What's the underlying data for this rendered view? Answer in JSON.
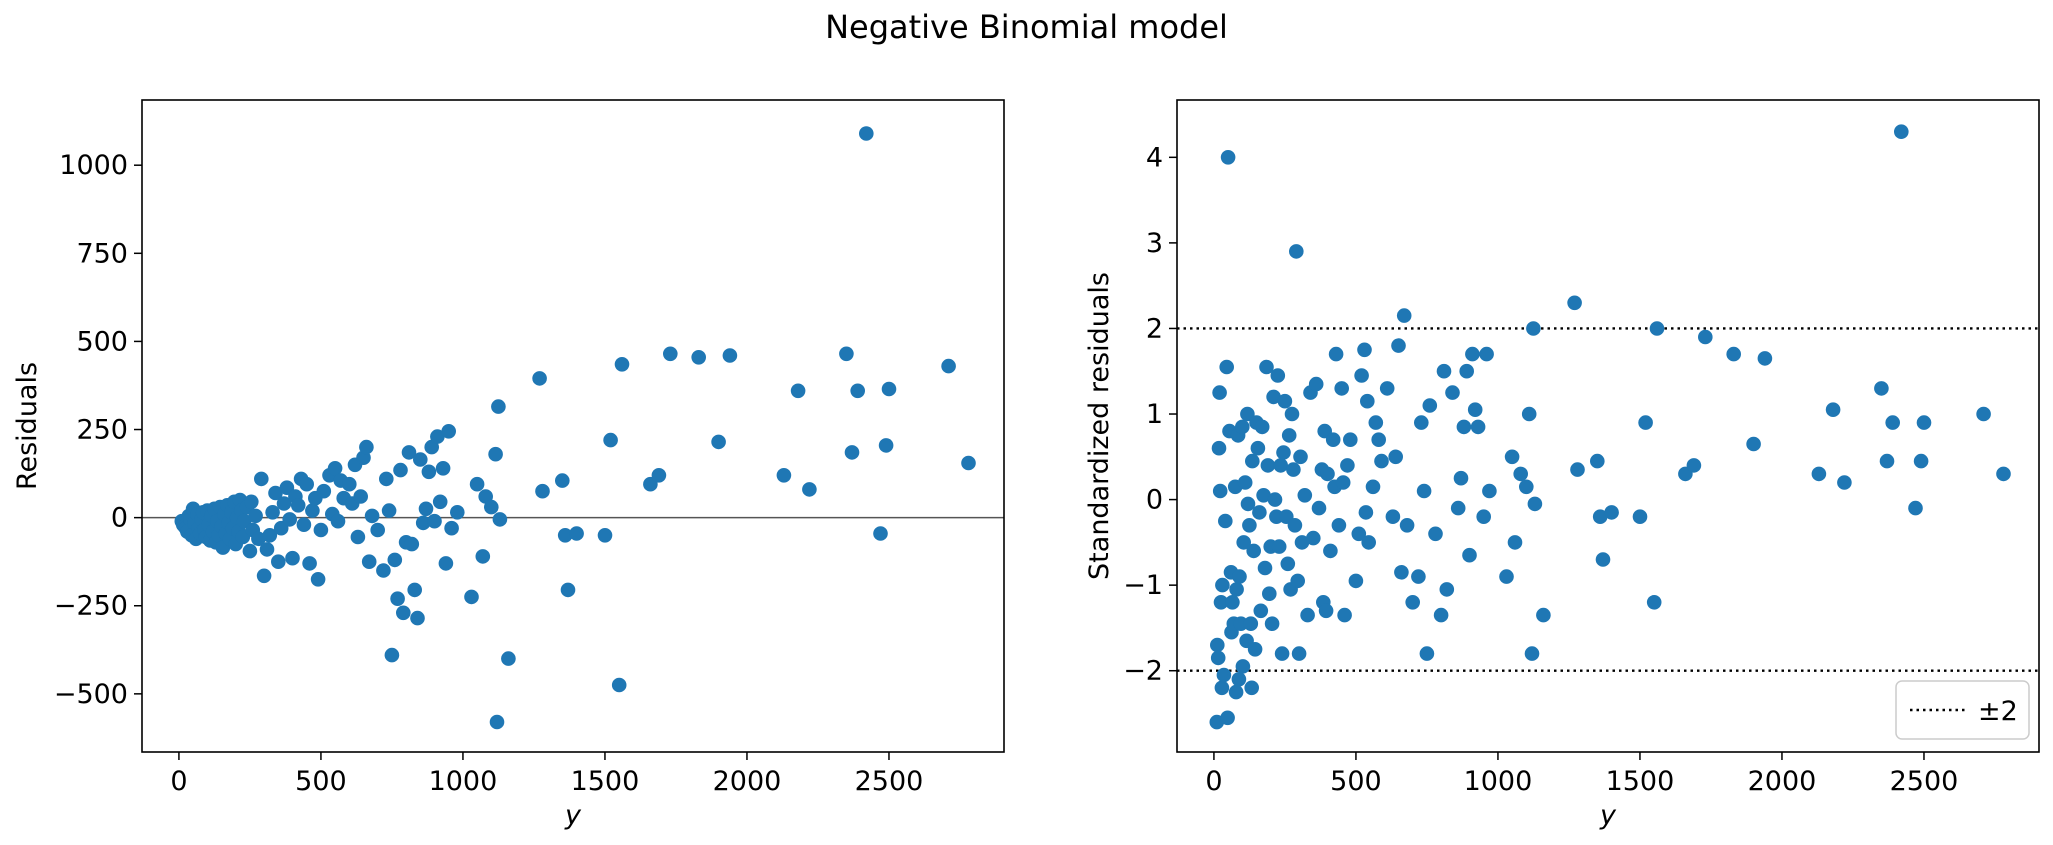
{
  "figure_title": "Negative Binomial model",
  "chart_data": [
    {
      "type": "scatter",
      "title": "",
      "xlabel": "y",
      "ylabel": "Residuals",
      "xlim": [
        -130,
        2905
      ],
      "ylim": [
        -665,
        1185
      ],
      "xticks": [
        0,
        500,
        1000,
        1500,
        2000,
        2500
      ],
      "xtick_labels": [
        "0",
        "500",
        "1000",
        "1500",
        "2000",
        "2500"
      ],
      "yticks": [
        -500,
        -250,
        0,
        250,
        500,
        750,
        1000
      ],
      "ytick_labels": [
        "−500",
        "−250",
        "0",
        "250",
        "500",
        "750",
        "1000"
      ],
      "hlines": [
        {
          "y": 0,
          "style": "solid",
          "color": "#555555"
        }
      ],
      "point_color": "#1f77b4",
      "grid": false,
      "points": [
        [
          10,
          -10
        ],
        [
          15,
          -20
        ],
        [
          20,
          -25
        ],
        [
          25,
          -30
        ],
        [
          30,
          -40
        ],
        [
          35,
          5
        ],
        [
          40,
          -5
        ],
        [
          45,
          -50
        ],
        [
          50,
          25
        ],
        [
          55,
          -15
        ],
        [
          60,
          -60
        ],
        [
          65,
          10
        ],
        [
          70,
          -30
        ],
        [
          75,
          -45
        ],
        [
          80,
          -5
        ],
        [
          85,
          15
        ],
        [
          90,
          -35
        ],
        [
          95,
          -55
        ],
        [
          100,
          20
        ],
        [
          105,
          -20
        ],
        [
          110,
          -65
        ],
        [
          115,
          5
        ],
        [
          120,
          -40
        ],
        [
          125,
          25
        ],
        [
          130,
          -70
        ],
        [
          135,
          -10
        ],
        [
          140,
          -50
        ],
        [
          145,
          30
        ],
        [
          150,
          -25
        ],
        [
          155,
          -85
        ],
        [
          160,
          10
        ],
        [
          165,
          -45
        ],
        [
          170,
          35
        ],
        [
          175,
          -15
        ],
        [
          180,
          -60
        ],
        [
          185,
          15
        ],
        [
          190,
          -30
        ],
        [
          195,
          45
        ],
        [
          200,
          -75
        ],
        [
          205,
          0
        ],
        [
          210,
          -40
        ],
        [
          215,
          50
        ],
        [
          220,
          20
        ],
        [
          225,
          -55
        ],
        [
          230,
          -10
        ],
        [
          240,
          30
        ],
        [
          250,
          -95
        ],
        [
          255,
          45
        ],
        [
          260,
          -35
        ],
        [
          270,
          5
        ],
        [
          280,
          -60
        ],
        [
          290,
          110
        ],
        [
          300,
          -165
        ],
        [
          310,
          -90
        ],
        [
          320,
          -50
        ],
        [
          330,
          15
        ],
        [
          340,
          70
        ],
        [
          350,
          -125
        ],
        [
          360,
          -30
        ],
        [
          370,
          40
        ],
        [
          380,
          85
        ],
        [
          390,
          -5
        ],
        [
          400,
          -115
        ],
        [
          410,
          60
        ],
        [
          420,
          35
        ],
        [
          430,
          110
        ],
        [
          440,
          -20
        ],
        [
          450,
          95
        ],
        [
          460,
          -130
        ],
        [
          470,
          20
        ],
        [
          480,
          55
        ],
        [
          490,
          -175
        ],
        [
          500,
          -35
        ],
        [
          510,
          75
        ],
        [
          530,
          120
        ],
        [
          540,
          10
        ],
        [
          550,
          140
        ],
        [
          560,
          -10
        ],
        [
          570,
          105
        ],
        [
          580,
          55
        ],
        [
          600,
          95
        ],
        [
          610,
          40
        ],
        [
          620,
          150
        ],
        [
          630,
          -55
        ],
        [
          640,
          60
        ],
        [
          650,
          170
        ],
        [
          660,
          200
        ],
        [
          670,
          -125
        ],
        [
          680,
          5
        ],
        [
          700,
          -35
        ],
        [
          720,
          -150
        ],
        [
          730,
          110
        ],
        [
          740,
          20
        ],
        [
          750,
          -390
        ],
        [
          760,
          -120
        ],
        [
          770,
          -230
        ],
        [
          780,
          135
        ],
        [
          790,
          -270
        ],
        [
          800,
          -70
        ],
        [
          810,
          185
        ],
        [
          820,
          -75
        ],
        [
          830,
          -205
        ],
        [
          840,
          -285
        ],
        [
          850,
          165
        ],
        [
          860,
          -15
        ],
        [
          870,
          25
        ],
        [
          880,
          130
        ],
        [
          890,
          200
        ],
        [
          900,
          -10
        ],
        [
          910,
          230
        ],
        [
          920,
          45
        ],
        [
          930,
          140
        ],
        [
          940,
          -130
        ],
        [
          950,
          245
        ],
        [
          960,
          -30
        ],
        [
          980,
          15
        ],
        [
          1030,
          -225
        ],
        [
          1050,
          95
        ],
        [
          1070,
          -110
        ],
        [
          1080,
          60
        ],
        [
          1100,
          30
        ],
        [
          1115,
          180
        ],
        [
          1120,
          -580
        ],
        [
          1125,
          315
        ],
        [
          1130,
          -5
        ],
        [
          1160,
          -400
        ],
        [
          1270,
          395
        ],
        [
          1280,
          75
        ],
        [
          1350,
          105
        ],
        [
          1360,
          -50
        ],
        [
          1370,
          -205
        ],
        [
          1400,
          -45
        ],
        [
          1500,
          -50
        ],
        [
          1520,
          220
        ],
        [
          1550,
          -475
        ],
        [
          1560,
          435
        ],
        [
          1660,
          95
        ],
        [
          1690,
          120
        ],
        [
          1730,
          465
        ],
        [
          1830,
          455
        ],
        [
          1900,
          215
        ],
        [
          1940,
          460
        ],
        [
          2130,
          120
        ],
        [
          2180,
          360
        ],
        [
          2220,
          80
        ],
        [
          2350,
          465
        ],
        [
          2370,
          185
        ],
        [
          2390,
          360
        ],
        [
          2420,
          1090
        ],
        [
          2470,
          -45
        ],
        [
          2490,
          205
        ],
        [
          2500,
          365
        ],
        [
          2710,
          430
        ],
        [
          2780,
          155
        ]
      ]
    },
    {
      "type": "scatter",
      "title": "",
      "xlabel": "y",
      "ylabel": "Standardized residuals",
      "xlim": [
        -130,
        2905
      ],
      "ylim": [
        -2.95,
        4.67
      ],
      "xticks": [
        0,
        500,
        1000,
        1500,
        2000,
        2500
      ],
      "xtick_labels": [
        "0",
        "500",
        "1000",
        "1500",
        "2000",
        "2500"
      ],
      "yticks": [
        -2,
        -1,
        0,
        1,
        2,
        3,
        4
      ],
      "ytick_labels": [
        "−2",
        "−1",
        "0",
        "1",
        "2",
        "3",
        "4"
      ],
      "hlines": [
        {
          "y": 2,
          "style": "dotted",
          "color": "#000000"
        },
        {
          "y": -2,
          "style": "dotted",
          "color": "#000000"
        }
      ],
      "legend": {
        "label": "±2",
        "position": "lower right"
      },
      "point_color": "#1f77b4",
      "grid": false,
      "points": [
        [
          10,
          -2.6
        ],
        [
          12,
          -1.7
        ],
        [
          15,
          -1.85
        ],
        [
          18,
          0.6
        ],
        [
          20,
          1.25
        ],
        [
          22,
          0.1
        ],
        [
          25,
          -1.2
        ],
        [
          28,
          -2.2
        ],
        [
          30,
          -1.0
        ],
        [
          35,
          -2.05
        ],
        [
          40,
          -0.25
        ],
        [
          45,
          1.55
        ],
        [
          48,
          -2.55
        ],
        [
          50,
          4.0
        ],
        [
          55,
          0.8
        ],
        [
          60,
          -0.85
        ],
        [
          62,
          -1.55
        ],
        [
          65,
          -1.2
        ],
        [
          70,
          -1.45
        ],
        [
          75,
          0.15
        ],
        [
          78,
          -2.25
        ],
        [
          80,
          -1.05
        ],
        [
          85,
          0.75
        ],
        [
          88,
          -2.1
        ],
        [
          90,
          -0.9
        ],
        [
          95,
          -1.45
        ],
        [
          100,
          0.85
        ],
        [
          102,
          -1.95
        ],
        [
          105,
          -0.5
        ],
        [
          110,
          0.2
        ],
        [
          115,
          -1.65
        ],
        [
          118,
          1.0
        ],
        [
          120,
          -0.05
        ],
        [
          125,
          -0.3
        ],
        [
          130,
          -1.45
        ],
        [
          133,
          -2.2
        ],
        [
          135,
          0.45
        ],
        [
          140,
          -0.6
        ],
        [
          145,
          -1.75
        ],
        [
          150,
          0.9
        ],
        [
          155,
          0.6
        ],
        [
          160,
          -0.15
        ],
        [
          165,
          -1.3
        ],
        [
          170,
          0.85
        ],
        [
          175,
          0.05
        ],
        [
          180,
          -0.8
        ],
        [
          185,
          1.55
        ],
        [
          190,
          0.4
        ],
        [
          195,
          -1.1
        ],
        [
          200,
          -0.55
        ],
        [
          205,
          -1.45
        ],
        [
          210,
          1.2
        ],
        [
          215,
          0.0
        ],
        [
          220,
          -0.2
        ],
        [
          225,
          1.45
        ],
        [
          230,
          -0.55
        ],
        [
          235,
          0.4
        ],
        [
          240,
          -1.8
        ],
        [
          245,
          0.55
        ],
        [
          250,
          1.15
        ],
        [
          255,
          -0.2
        ],
        [
          260,
          -0.75
        ],
        [
          265,
          0.75
        ],
        [
          270,
          -1.05
        ],
        [
          275,
          1.0
        ],
        [
          280,
          0.35
        ],
        [
          285,
          -0.3
        ],
        [
          290,
          2.9
        ],
        [
          295,
          -0.95
        ],
        [
          300,
          -1.8
        ],
        [
          305,
          0.5
        ],
        [
          310,
          -0.5
        ],
        [
          320,
          0.05
        ],
        [
          330,
          -1.35
        ],
        [
          340,
          1.25
        ],
        [
          350,
          -0.45
        ],
        [
          360,
          1.35
        ],
        [
          370,
          -0.1
        ],
        [
          380,
          0.35
        ],
        [
          385,
          -1.2
        ],
        [
          390,
          0.8
        ],
        [
          395,
          -1.3
        ],
        [
          400,
          0.3
        ],
        [
          410,
          -0.6
        ],
        [
          420,
          0.7
        ],
        [
          425,
          0.15
        ],
        [
          430,
          1.7
        ],
        [
          440,
          -0.3
        ],
        [
          450,
          1.3
        ],
        [
          455,
          0.2
        ],
        [
          460,
          -1.35
        ],
        [
          470,
          0.4
        ],
        [
          480,
          0.7
        ],
        [
          500,
          -0.95
        ],
        [
          510,
          -0.4
        ],
        [
          520,
          1.45
        ],
        [
          530,
          1.75
        ],
        [
          535,
          -0.15
        ],
        [
          540,
          1.15
        ],
        [
          545,
          -0.5
        ],
        [
          560,
          0.15
        ],
        [
          570,
          0.9
        ],
        [
          580,
          0.7
        ],
        [
          590,
          0.45
        ],
        [
          610,
          1.3
        ],
        [
          630,
          -0.2
        ],
        [
          640,
          0.5
        ],
        [
          650,
          1.8
        ],
        [
          660,
          -0.85
        ],
        [
          670,
          2.15
        ],
        [
          680,
          -0.3
        ],
        [
          700,
          -1.2
        ],
        [
          720,
          -0.9
        ],
        [
          730,
          0.9
        ],
        [
          740,
          0.1
        ],
        [
          750,
          -1.8
        ],
        [
          760,
          1.1
        ],
        [
          780,
          -0.4
        ],
        [
          800,
          -1.35
        ],
        [
          810,
          1.5
        ],
        [
          820,
          -1.05
        ],
        [
          840,
          1.25
        ],
        [
          860,
          -0.1
        ],
        [
          870,
          0.25
        ],
        [
          880,
          0.85
        ],
        [
          890,
          1.5
        ],
        [
          900,
          -0.65
        ],
        [
          910,
          1.7
        ],
        [
          920,
          1.05
        ],
        [
          930,
          0.85
        ],
        [
          950,
          -0.2
        ],
        [
          960,
          1.7
        ],
        [
          970,
          0.1
        ],
        [
          1030,
          -0.9
        ],
        [
          1050,
          0.5
        ],
        [
          1060,
          -0.5
        ],
        [
          1080,
          0.3
        ],
        [
          1100,
          0.15
        ],
        [
          1110,
          1.0
        ],
        [
          1120,
          -1.8
        ],
        [
          1125,
          2.0
        ],
        [
          1130,
          -0.05
        ],
        [
          1160,
          -1.35
        ],
        [
          1270,
          2.3
        ],
        [
          1280,
          0.35
        ],
        [
          1350,
          0.45
        ],
        [
          1360,
          -0.2
        ],
        [
          1370,
          -0.7
        ],
        [
          1400,
          -0.15
        ],
        [
          1500,
          -0.2
        ],
        [
          1520,
          0.9
        ],
        [
          1550,
          -1.2
        ],
        [
          1560,
          2.0
        ],
        [
          1660,
          0.3
        ],
        [
          1690,
          0.4
        ],
        [
          1730,
          1.9
        ],
        [
          1830,
          1.7
        ],
        [
          1900,
          0.65
        ],
        [
          1940,
          1.65
        ],
        [
          2130,
          0.3
        ],
        [
          2180,
          1.05
        ],
        [
          2220,
          0.2
        ],
        [
          2350,
          1.3
        ],
        [
          2370,
          0.45
        ],
        [
          2390,
          0.9
        ],
        [
          2420,
          4.3
        ],
        [
          2470,
          -0.1
        ],
        [
          2490,
          0.45
        ],
        [
          2500,
          0.9
        ],
        [
          2710,
          1.0
        ],
        [
          2780,
          0.3
        ]
      ]
    }
  ]
}
